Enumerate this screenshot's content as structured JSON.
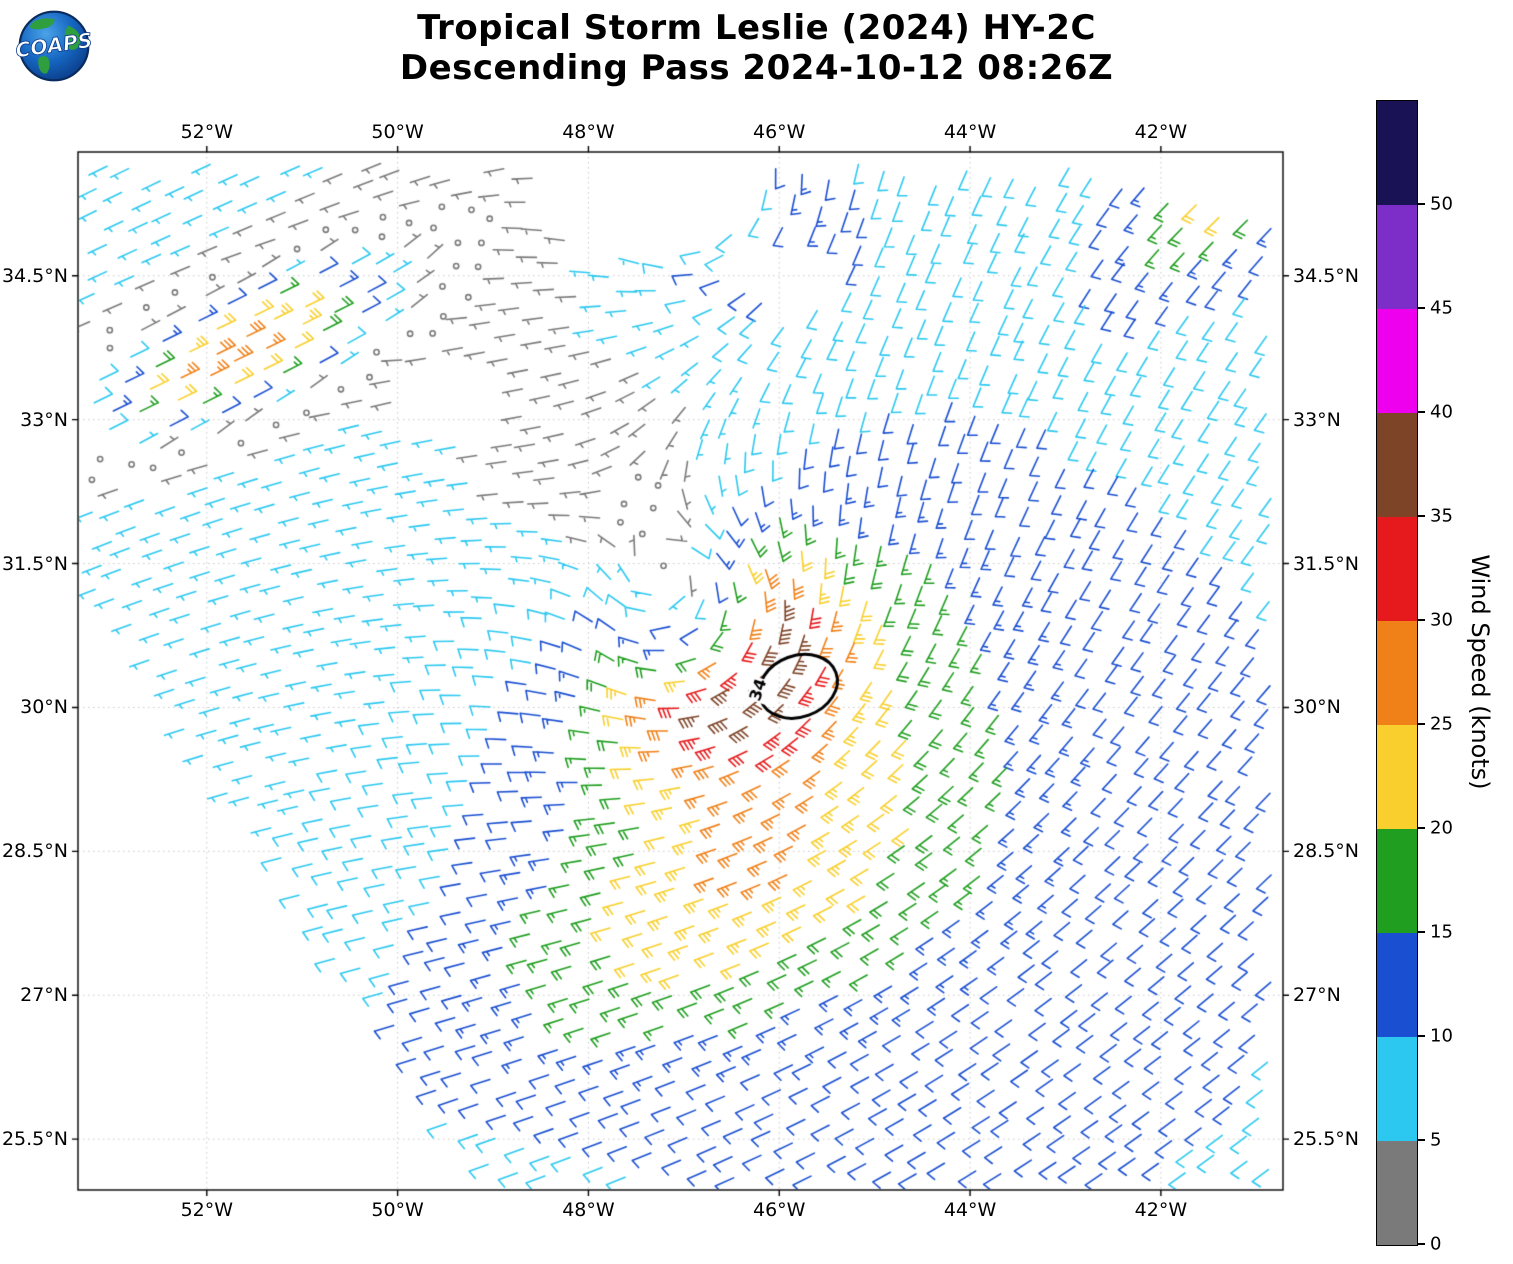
{
  "header": {
    "title_line1": "Tropical Storm Leslie (2024) HY-2C",
    "title_line2": "Descending Pass 2024-10-12 08:26Z",
    "logo_text": "COAPS"
  },
  "chart_data": {
    "type": "wind-barb-map",
    "storm_name": "Tropical Storm Leslie (2024)",
    "satellite": "HY-2C",
    "pass_type": "Descending",
    "pass_time_utc": "2024-10-12 08:26Z",
    "map_extent": {
      "lon_min": -53.35,
      "lon_max": -40.72,
      "lat_min": 24.97,
      "lat_max": 35.79
    },
    "lon_ticks": [
      {
        "value": -52,
        "label": "52°W"
      },
      {
        "value": -50,
        "label": "50°W"
      },
      {
        "value": -48,
        "label": "48°W"
      },
      {
        "value": -46,
        "label": "46°W"
      },
      {
        "value": -44,
        "label": "44°W"
      },
      {
        "value": -42,
        "label": "42°W"
      }
    ],
    "lat_ticks": [
      {
        "value": 34.5,
        "label": "34.5°N"
      },
      {
        "value": 33,
        "label": "33°N"
      },
      {
        "value": 31.5,
        "label": "31.5°N"
      },
      {
        "value": 30,
        "label": "30°N"
      },
      {
        "value": 28.5,
        "label": "28.5°N"
      },
      {
        "value": 27,
        "label": "27°N"
      },
      {
        "value": 25.5,
        "label": "25.5°N"
      }
    ],
    "colorbar": {
      "label": "Wind Speed (knots)",
      "tick_values": [
        0,
        5,
        10,
        15,
        20,
        25,
        30,
        35,
        40,
        45,
        50
      ],
      "value_range": [
        0,
        55
      ],
      "band_colors_bottom_to_top": [
        "#7a7a7a",
        "#2cc8f0",
        "#1a4fd1",
        "#1f9e1f",
        "#f8cf2c",
        "#f08018",
        "#e61a1c",
        "#7e4428",
        "#ee00ee",
        "#7d2ec8",
        "#191254"
      ]
    },
    "barb_convention": {
      "half_barb_kt": 5,
      "full_barb_kt": 10
    },
    "wind_radius_contour": {
      "label": "34",
      "lon": -45.8,
      "lat": 30.22,
      "rx_deg": 0.42,
      "ry_deg": 0.32,
      "rotation_deg": -20,
      "color": "#000000"
    },
    "barb_grid": {
      "origin_lon": -53.3,
      "origin_lat": 35.75,
      "step_deg": 0.27,
      "row_tilt_deg": -16,
      "jitter_deg": 0.05
    },
    "wind_field_model": {
      "note": "parametric reconstruction of depicted scatterometer wind field, knots",
      "background": {
        "u_kt": 6,
        "v_kt": 4
      },
      "storm_vortex": {
        "lon": -46.85,
        "lat": 30.8,
        "vmax_kt": 24,
        "rmax_deg": 0.95,
        "outer_decay": 1.25,
        "azimuth_enhance_amp": 0.45,
        "azimuth_enhance_dir_deg": -20,
        "asym_u_kt": 4,
        "asym_v_kt": 2.5,
        "asym_scale_deg": 2.0
      },
      "secondary_vortex": {
        "lon": -46.6,
        "lat": 35.3,
        "vmax_kt": 9,
        "rmax_deg": 0.9,
        "outer_decay": 1.4
      },
      "jets": [
        {
          "lon": -51.7,
          "lat": 33.7,
          "dir_u": -0.91,
          "dir_v": -0.42,
          "amp_kt": 35,
          "sigma_along_deg": 1.8,
          "sigma_cross_deg": 0.6
        },
        {
          "lon": -41.2,
          "lat": 35.5,
          "dir_u": 0.8,
          "dir_v": 0.6,
          "amp_kt": 15,
          "sigma_along_deg": 1.3,
          "sigma_cross_deg": 0.7
        },
        {
          "lon": -46.8,
          "lat": 27.8,
          "dir_u": 0.93,
          "dir_v": 0.37,
          "amp_kt": 10,
          "sigma_along_deg": 2.5,
          "sigma_cross_deg": 1.1
        }
      ],
      "calm_spot": {
        "lon": -48.3,
        "lat": 32.6,
        "radius_deg": 0.7,
        "factor": 0.35
      },
      "speed_cap_kt": 39.5
    },
    "data_gaps": {
      "swath_edge": {
        "lon_ref": -53.35,
        "lat_at_ref": 31.35,
        "dlat_dlon": -1.48
      },
      "holes": [
        {
          "lon": -47.4,
          "lat": 35.35,
          "rx_deg": 1.15,
          "ry_deg": 0.65
        },
        {
          "lon": -49.3,
          "lat": 33.15,
          "rx_deg": 0.6,
          "ry_deg": 0.42
        },
        {
          "lon": -45.9,
          "lat": 34.6,
          "rx_deg": 0.55,
          "ry_deg": 0.38
        }
      ]
    }
  }
}
